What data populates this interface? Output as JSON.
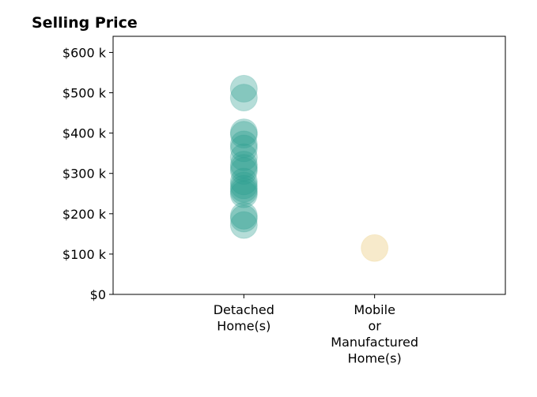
{
  "chart_data": {
    "type": "scatter",
    "title": "Selling Price",
    "xlabel": "",
    "ylabel": "",
    "categories": [
      [
        "Detached",
        "Home(s)"
      ],
      [
        "Mobile",
        "or",
        "Manufactured",
        "Home(s)"
      ]
    ],
    "ylim": [
      0,
      640000
    ],
    "yticks": [
      0,
      100000,
      200000,
      300000,
      400000,
      500000,
      600000
    ],
    "ytick_labels": [
      "$0",
      "$100 k",
      "$200 k",
      "$300 k",
      "$400 k",
      "$500 k",
      "$600 k"
    ],
    "grid": false,
    "series": [
      {
        "category": "Detached Home(s)",
        "color": "#2a9d8f",
        "opacity": 0.35,
        "values": [
          510000,
          488000,
          402000,
          396000,
          372000,
          362000,
          340000,
          322000,
          314000,
          306000,
          280000,
          270000,
          262000,
          255000,
          248000,
          195000,
          188000,
          172000
        ]
      },
      {
        "category": "Mobile or Manufactured Home(s)",
        "color": "#e9c46a",
        "opacity": 0.35,
        "values": [
          115000
        ]
      }
    ]
  }
}
